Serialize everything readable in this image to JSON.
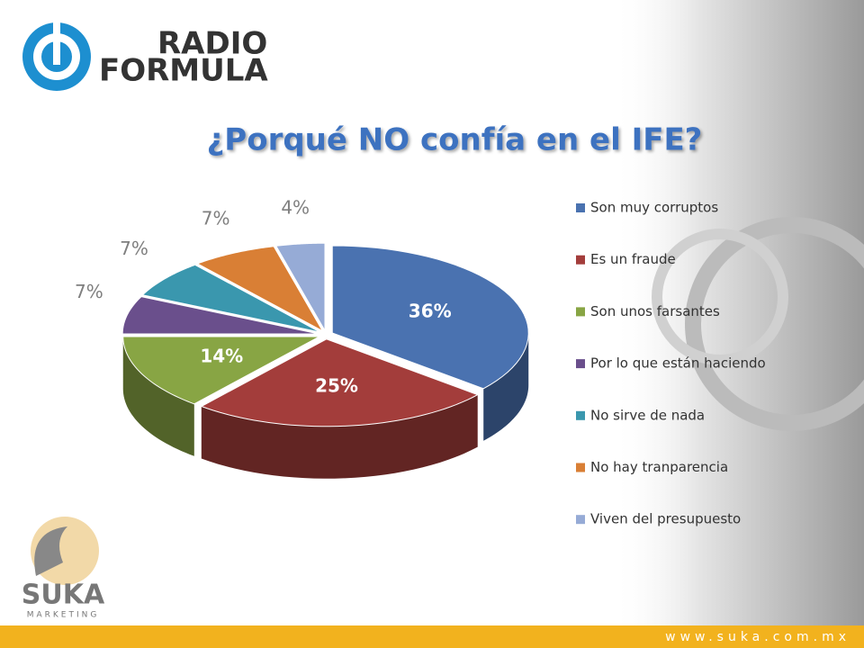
{
  "logo": {
    "brand": "RADIO",
    "brand2": "FORMULA"
  },
  "footer": {
    "brand": "SUKA",
    "tagline": "MARKETING",
    "url": "www.suka.com.mx"
  },
  "chart_data": {
    "type": "pie",
    "title": "¿Porqué NO confía en el IFE?",
    "categories": [
      "Son muy corruptos",
      "Es un fraude",
      "Son unos farsantes",
      "Por lo que están haciendo",
      "No sirve de nada",
      "No hay tranparencia",
      "Viven del presupuesto"
    ],
    "values": [
      36,
      25,
      14,
      7,
      7,
      7,
      4
    ],
    "value_labels": [
      "36%",
      "25%",
      "14%",
      "7%",
      "7%",
      "7%",
      "4%"
    ],
    "colors": [
      "#4a72b0",
      "#a33d3b",
      "#88a544",
      "#6a4f8c",
      "#3a97ae",
      "#d97f35",
      "#96abd6"
    ],
    "legend": "right"
  }
}
